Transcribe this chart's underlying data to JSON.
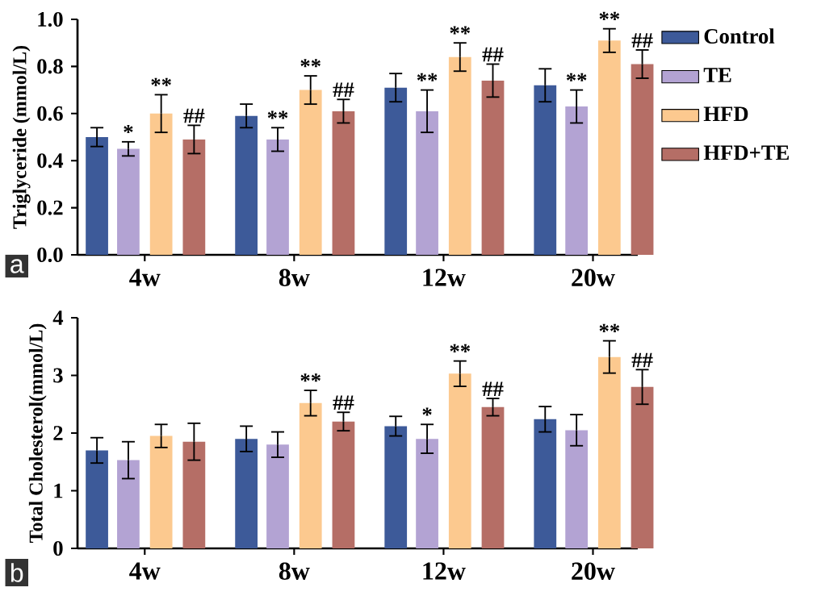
{
  "chart_data": [
    {
      "type": "bar",
      "ylabel": "Triglyceride (mmol/L)",
      "categories": [
        "4w",
        "8w",
        "12w",
        "20w"
      ],
      "ylim": [
        0,
        1.0
      ],
      "yticks": [
        {
          "value": 0,
          "label": "0.0"
        },
        {
          "value": 0.2,
          "label": "0.2"
        },
        {
          "value": 0.4,
          "label": "0.4"
        },
        {
          "value": 0.6,
          "label": "0.6"
        },
        {
          "value": 0.8,
          "label": "0.8"
        },
        {
          "value": 1.0,
          "label": "1.0"
        }
      ],
      "legend": "right",
      "annotations": [
        "a"
      ],
      "series": [
        {
          "name": "Control",
          "color": "#3d5a99",
          "values": [
            0.5,
            0.59,
            0.71,
            0.72
          ],
          "errors": [
            0.04,
            0.05,
            0.06,
            0.07
          ],
          "value_labels": [
            null,
            null,
            null,
            null
          ]
        },
        {
          "name": "TE",
          "color": "#b3a3d3",
          "values": [
            0.45,
            0.49,
            0.61,
            0.63
          ],
          "errors": [
            0.03,
            0.05,
            0.09,
            0.07
          ],
          "value_labels": [
            "*",
            "**",
            "**",
            "**"
          ]
        },
        {
          "name": "HFD",
          "color": "#fcc98f",
          "values": [
            0.6,
            0.7,
            0.84,
            0.91
          ],
          "errors": [
            0.08,
            0.06,
            0.06,
            0.05
          ],
          "value_labels": [
            "**",
            "**",
            "**",
            "**"
          ]
        },
        {
          "name": "HFD+TE",
          "color": "#b56e66",
          "values": [
            0.49,
            0.61,
            0.74,
            0.81
          ],
          "errors": [
            0.06,
            0.05,
            0.07,
            0.06
          ],
          "value_labels": [
            "##",
            "##",
            "##",
            "##"
          ]
        }
      ]
    },
    {
      "type": "bar",
      "ylabel": "Total Cholesterol(mmol/L)",
      "categories": [
        "4w",
        "8w",
        "12w",
        "20w"
      ],
      "ylim": [
        0,
        4
      ],
      "yticks": [
        0,
        1,
        2,
        3,
        4
      ],
      "annotations": [
        "b"
      ],
      "series": [
        {
          "color": "#3d5a99",
          "values": [
            1.7,
            1.9,
            2.12,
            2.24
          ],
          "errors": [
            0.22,
            0.22,
            0.17,
            0.22
          ],
          "value_labels": [
            null,
            null,
            null,
            null
          ]
        },
        {
          "color": "#b3a3d3",
          "values": [
            1.53,
            1.8,
            1.9,
            2.05
          ],
          "errors": [
            0.32,
            0.22,
            0.25,
            0.27
          ],
          "value_labels": [
            null,
            null,
            "*",
            null
          ]
        },
        {
          "color": "#fcc98f",
          "values": [
            1.95,
            2.52,
            3.03,
            3.32
          ],
          "errors": [
            0.2,
            0.22,
            0.22,
            0.28
          ],
          "value_labels": [
            null,
            "**",
            "**",
            "**"
          ]
        },
        {
          "color": "#b56e66",
          "values": [
            1.85,
            2.2,
            2.45,
            2.8
          ],
          "errors": [
            0.32,
            0.16,
            0.15,
            0.3
          ],
          "value_labels": [
            null,
            "##",
            "##",
            "##"
          ]
        }
      ]
    }
  ]
}
